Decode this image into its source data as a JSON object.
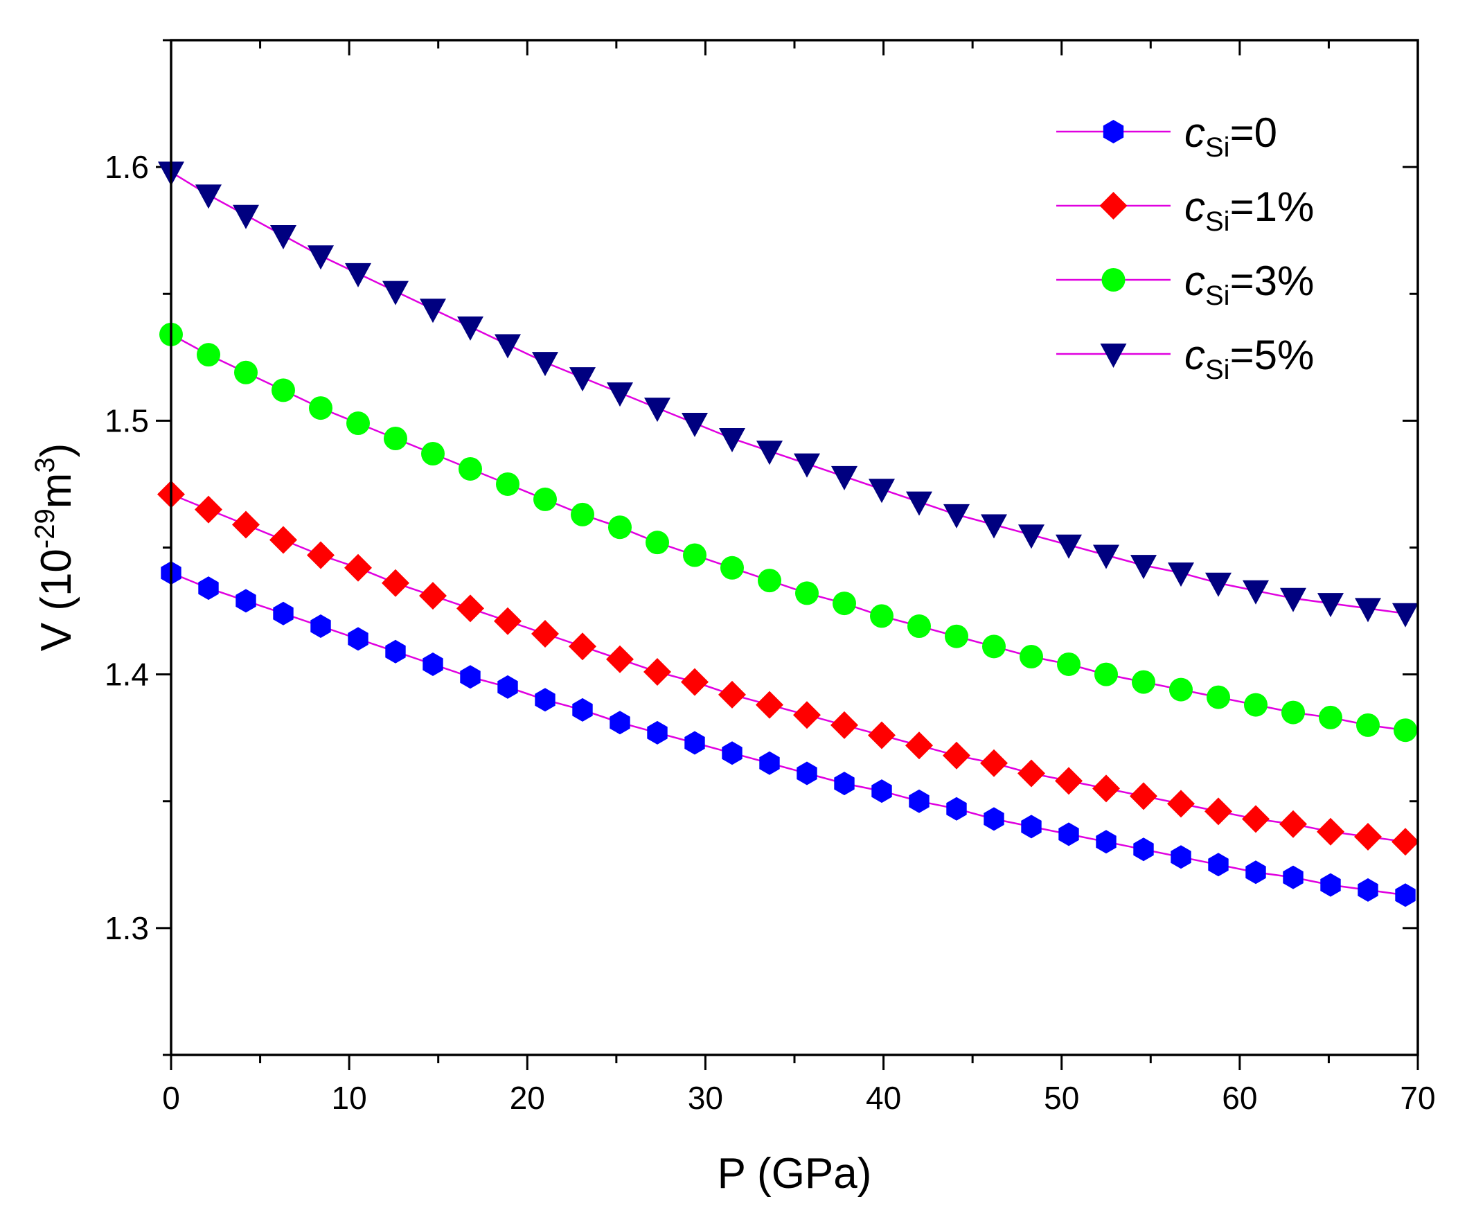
{
  "chart_data": {
    "type": "line",
    "xlabel": "P (GPa)",
    "ylabel": {
      "prefix": "V (10",
      "exp1": "-29",
      "mid": "m",
      "exp2": "3",
      "suffix": ")"
    },
    "xlim": [
      0,
      70
    ],
    "ylim": [
      1.25,
      1.65
    ],
    "xticks": [
      0,
      10,
      20,
      30,
      40,
      50,
      60,
      70
    ],
    "xtick_labels": [
      "0",
      "10",
      "20",
      "30",
      "40",
      "50",
      "60",
      "70"
    ],
    "yticks": [
      1.3,
      1.4,
      1.5,
      1.6
    ],
    "ytick_labels": [
      "1.3",
      "1.4",
      "1.5",
      "1.6"
    ],
    "x": [
      0,
      2.1,
      4.2,
      6.3,
      8.4,
      10.5,
      12.6,
      14.7,
      16.8,
      18.9,
      21.0,
      23.1,
      25.2,
      27.3,
      29.4,
      31.5,
      33.6,
      35.7,
      37.8,
      39.9,
      42.0,
      44.1,
      46.2,
      48.3,
      50.4,
      52.5,
      54.6,
      56.7,
      58.8,
      60.9,
      63.0,
      65.1,
      67.2,
      69.3
    ],
    "line_color": "#e000e0",
    "series": [
      {
        "name": "0",
        "legend": {
          "c": "c",
          "sub": "Si",
          "rest": "=0"
        },
        "marker": "hexagon",
        "color": "#0000ff",
        "values": [
          1.44,
          1.434,
          1.429,
          1.424,
          1.419,
          1.414,
          1.409,
          1.404,
          1.399,
          1.395,
          1.39,
          1.386,
          1.381,
          1.377,
          1.373,
          1.369,
          1.365,
          1.361,
          1.357,
          1.354,
          1.35,
          1.347,
          1.343,
          1.34,
          1.337,
          1.334,
          1.331,
          1.328,
          1.325,
          1.322,
          1.32,
          1.317,
          1.315,
          1.313
        ]
      },
      {
        "name": "1%",
        "legend": {
          "c": "c",
          "sub": "Si",
          "rest": "=1%"
        },
        "marker": "diamond",
        "color": "#ff0000",
        "values": [
          1.471,
          1.465,
          1.459,
          1.453,
          1.447,
          1.442,
          1.436,
          1.431,
          1.426,
          1.421,
          1.416,
          1.411,
          1.406,
          1.401,
          1.397,
          1.392,
          1.388,
          1.384,
          1.38,
          1.376,
          1.372,
          1.368,
          1.365,
          1.361,
          1.358,
          1.355,
          1.352,
          1.349,
          1.346,
          1.343,
          1.341,
          1.338,
          1.336,
          1.334
        ]
      },
      {
        "name": "3%",
        "legend": {
          "c": "c",
          "sub": "Si",
          "rest": "=3%"
        },
        "marker": "circle",
        "color": "#00ff00",
        "values": [
          1.534,
          1.526,
          1.519,
          1.512,
          1.505,
          1.499,
          1.493,
          1.487,
          1.481,
          1.475,
          1.469,
          1.463,
          1.458,
          1.452,
          1.447,
          1.442,
          1.437,
          1.432,
          1.428,
          1.423,
          1.419,
          1.415,
          1.411,
          1.407,
          1.404,
          1.4,
          1.397,
          1.394,
          1.391,
          1.388,
          1.385,
          1.383,
          1.38,
          1.378
        ]
      },
      {
        "name": "5%",
        "legend": {
          "c": "c",
          "sub": "Si",
          "rest": "=5%"
        },
        "marker": "triangle-down",
        "color": "#000080",
        "values": [
          1.598,
          1.589,
          1.581,
          1.573,
          1.565,
          1.558,
          1.551,
          1.544,
          1.537,
          1.53,
          1.523,
          1.517,
          1.511,
          1.505,
          1.499,
          1.493,
          1.488,
          1.483,
          1.478,
          1.473,
          1.468,
          1.463,
          1.459,
          1.455,
          1.451,
          1.447,
          1.443,
          1.44,
          1.436,
          1.433,
          1.43,
          1.428,
          1.426,
          1.424
        ]
      }
    ],
    "legend_position": "top-right"
  }
}
